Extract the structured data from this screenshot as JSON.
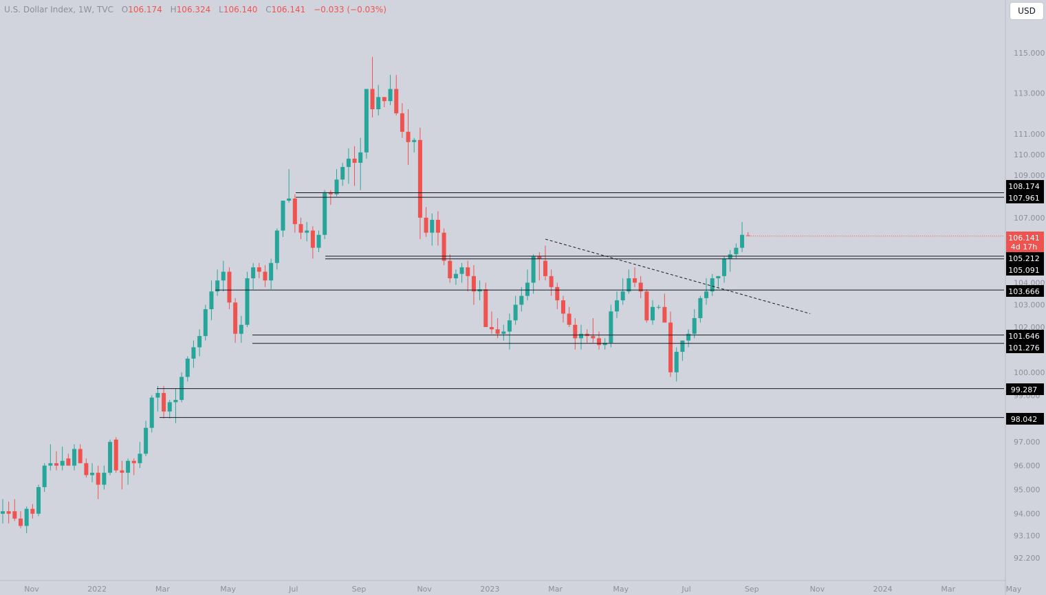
{
  "header": {
    "symbol": "U.S. Dollar Index, 1W, TVC",
    "open_label": "O",
    "open": "106.174",
    "high_label": "H",
    "high": "106.324",
    "low_label": "L",
    "low": "106.140",
    "close_label": "C",
    "close": "106.141",
    "change": "−0.033 (−0.03%)"
  },
  "currency_button": "USD",
  "colors": {
    "up": "#26a69a",
    "down": "#ef5350",
    "background": "#d1d4dc",
    "axis_text": "#8a8f99"
  },
  "chart_data": {
    "type": "candlestick",
    "x_tick_labels": [
      "Nov",
      "2022",
      "Mar",
      "May",
      "Jul",
      "Sep",
      "Nov",
      "2023",
      "Mar",
      "May",
      "Jul",
      "Sep",
      "Nov",
      "2024",
      "Mar",
      "May"
    ],
    "y_tick_labels": [
      "115.000",
      "113.000",
      "111.000",
      "110.000",
      "109.000",
      "107.000",
      "104.000",
      "103.000",
      "102.000",
      "100.000",
      "99.000",
      "97.000",
      "96.000",
      "95.000",
      "94.000",
      "93.100",
      "92.200"
    ],
    "ylim": [
      91.0,
      116.0
    ],
    "y_scale": "log",
    "candles": [
      [
        94.0,
        94.6,
        93.6,
        94.1
      ],
      [
        94.1,
        94.5,
        93.6,
        94.0
      ],
      [
        94.1,
        94.6,
        93.7,
        93.8
      ],
      [
        93.8,
        94.1,
        93.4,
        93.5
      ],
      [
        93.5,
        94.3,
        93.2,
        94.2
      ],
      [
        94.2,
        94.4,
        93.8,
        94.0
      ],
      [
        94.0,
        95.2,
        93.9,
        95.1
      ],
      [
        95.1,
        96.1,
        94.9,
        96.0
      ],
      [
        96.0,
        96.9,
        95.8,
        96.1
      ],
      [
        96.1,
        96.6,
        95.8,
        96.0
      ],
      [
        96.0,
        96.8,
        95.8,
        96.2
      ],
      [
        96.3,
        96.5,
        96.0,
        96.0
      ],
      [
        96.0,
        96.9,
        95.8,
        96.7
      ],
      [
        96.7,
        96.9,
        96.1,
        96.1
      ],
      [
        96.1,
        96.3,
        95.5,
        95.6
      ],
      [
        95.6,
        96.1,
        95.3,
        95.7
      ],
      [
        95.7,
        96.0,
        94.6,
        95.2
      ],
      [
        95.2,
        96.0,
        95.0,
        95.7
      ],
      [
        95.7,
        97.1,
        95.6,
        97.0
      ],
      [
        97.1,
        97.2,
        95.7,
        95.8
      ],
      [
        95.8,
        96.2,
        95.0,
        95.7
      ],
      [
        95.7,
        96.3,
        95.2,
        96.2
      ],
      [
        96.2,
        96.3,
        95.6,
        96.1
      ],
      [
        96.1,
        97.0,
        95.9,
        96.5
      ],
      [
        96.5,
        97.9,
        96.4,
        97.6
      ],
      [
        97.6,
        99.0,
        97.4,
        98.9
      ],
      [
        98.9,
        99.4,
        98.3,
        99.1
      ],
      [
        99.1,
        99.4,
        98.0,
        98.3
      ],
      [
        98.3,
        98.8,
        98.0,
        98.7
      ],
      [
        98.7,
        99.3,
        97.8,
        98.8
      ],
      [
        98.8,
        100.0,
        98.7,
        99.8
      ],
      [
        99.8,
        100.7,
        99.6,
        100.6
      ],
      [
        100.6,
        101.4,
        100.2,
        101.1
      ],
      [
        101.1,
        101.9,
        100.7,
        101.6
      ],
      [
        101.6,
        103.0,
        101.4,
        102.8
      ],
      [
        102.8,
        104.1,
        102.3,
        103.6
      ],
      [
        103.6,
        104.6,
        103.4,
        104.1
      ],
      [
        104.1,
        105.0,
        103.6,
        104.5
      ],
      [
        104.5,
        104.7,
        102.8,
        103.1
      ],
      [
        103.1,
        103.3,
        101.3,
        101.7
      ],
      [
        101.7,
        102.5,
        101.3,
        102.1
      ],
      [
        102.1,
        104.5,
        102.0,
        104.2
      ],
      [
        104.2,
        104.9,
        103.7,
        104.7
      ],
      [
        104.7,
        104.9,
        104.2,
        104.5
      ],
      [
        104.5,
        104.8,
        103.8,
        104.1
      ],
      [
        104.1,
        105.1,
        103.7,
        104.9
      ],
      [
        104.9,
        106.5,
        104.6,
        106.4
      ],
      [
        106.4,
        107.7,
        106.1,
        107.8
      ],
      [
        107.8,
        109.3,
        107.7,
        107.9
      ],
      [
        107.9,
        108.1,
        106.3,
        106.7
      ],
      [
        106.7,
        107.0,
        106.0,
        106.3
      ],
      [
        106.3,
        106.8,
        105.9,
        106.4
      ],
      [
        106.4,
        106.6,
        105.1,
        105.6
      ],
      [
        105.6,
        106.4,
        105.4,
        106.2
      ],
      [
        106.2,
        108.3,
        106.0,
        108.2
      ],
      [
        108.2,
        108.3,
        107.6,
        108.1
      ],
      [
        108.1,
        109.3,
        108.0,
        108.8
      ],
      [
        108.8,
        109.6,
        108.5,
        109.4
      ],
      [
        109.4,
        110.3,
        108.6,
        109.8
      ],
      [
        109.8,
        110.4,
        108.5,
        109.6
      ],
      [
        109.6,
        110.8,
        108.3,
        110.1
      ],
      [
        110.1,
        113.0,
        109.8,
        113.2
      ],
      [
        113.2,
        114.8,
        111.8,
        112.2
      ],
      [
        112.2,
        113.4,
        111.9,
        112.8
      ],
      [
        112.8,
        112.8,
        112.3,
        112.6
      ],
      [
        112.6,
        113.9,
        112.4,
        113.2
      ],
      [
        113.2,
        113.9,
        111.9,
        112.0
      ],
      [
        112.0,
        112.5,
        110.8,
        111.1
      ],
      [
        111.1,
        112.2,
        109.5,
        110.6
      ],
      [
        110.6,
        110.8,
        110.1,
        110.7
      ],
      [
        110.7,
        111.3,
        106.0,
        107.0
      ],
      [
        107.0,
        107.5,
        106.1,
        106.3
      ],
      [
        106.3,
        107.2,
        105.7,
        106.9
      ],
      [
        106.9,
        107.3,
        105.7,
        106.3
      ],
      [
        106.3,
        106.5,
        104.8,
        105.0
      ],
      [
        105.0,
        105.3,
        104.0,
        104.2
      ],
      [
        104.2,
        104.6,
        103.9,
        104.4
      ],
      [
        104.4,
        104.9,
        104.0,
        104.7
      ],
      [
        104.7,
        105.0,
        103.6,
        104.3
      ],
      [
        104.3,
        104.8,
        103.0,
        103.6
      ],
      [
        103.6,
        104.1,
        103.2,
        103.7
      ],
      [
        103.7,
        104.0,
        102.0,
        102.0
      ],
      [
        102.0,
        102.7,
        101.7,
        101.9
      ],
      [
        101.9,
        102.4,
        101.5,
        101.7
      ],
      [
        101.7,
        102.1,
        101.4,
        101.8
      ],
      [
        101.8,
        102.6,
        101.0,
        102.3
      ],
      [
        102.3,
        103.4,
        102.1,
        103.0
      ],
      [
        103.0,
        103.8,
        102.7,
        103.4
      ],
      [
        103.4,
        104.6,
        103.2,
        104.0
      ],
      [
        104.0,
        105.3,
        103.5,
        105.2
      ],
      [
        105.2,
        105.4,
        104.1,
        105.1
      ],
      [
        105.0,
        105.7,
        104.1,
        104.3
      ],
      [
        104.3,
        104.6,
        103.4,
        103.8
      ],
      [
        103.8,
        104.0,
        102.8,
        103.2
      ],
      [
        103.2,
        103.4,
        102.2,
        102.6
      ],
      [
        102.6,
        102.9,
        102.0,
        102.1
      ],
      [
        102.1,
        102.4,
        101.0,
        101.5
      ],
      [
        101.5,
        102.1,
        101.0,
        101.7
      ],
      [
        101.7,
        101.9,
        101.3,
        101.6
      ],
      [
        101.6,
        102.4,
        101.3,
        101.5
      ],
      [
        101.5,
        101.8,
        101.0,
        101.2
      ],
      [
        101.2,
        101.5,
        101.0,
        101.3
      ],
      [
        101.3,
        103.0,
        101.1,
        102.7
      ],
      [
        102.7,
        103.6,
        102.4,
        103.2
      ],
      [
        103.2,
        104.2,
        103.0,
        103.6
      ],
      [
        103.6,
        104.6,
        103.5,
        104.2
      ],
      [
        104.2,
        104.7,
        103.8,
        104.0
      ],
      [
        104.0,
        104.3,
        103.3,
        103.6
      ],
      [
        103.6,
        103.7,
        102.2,
        102.3
      ],
      [
        102.3,
        103.2,
        102.1,
        102.9
      ],
      [
        102.9,
        103.0,
        102.8,
        102.9
      ],
      [
        102.9,
        103.5,
        102.2,
        102.2
      ],
      [
        102.2,
        102.7,
        99.8,
        100.0
      ],
      [
        100.0,
        101.1,
        99.6,
        100.9
      ],
      [
        100.9,
        101.3,
        100.5,
        101.4
      ],
      [
        101.4,
        101.9,
        101.1,
        101.7
      ],
      [
        101.7,
        102.8,
        101.5,
        102.4
      ],
      [
        102.4,
        103.4,
        102.2,
        103.3
      ],
      [
        103.3,
        104.2,
        103.0,
        103.6
      ],
      [
        103.6,
        104.4,
        103.4,
        104.2
      ],
      [
        104.2,
        104.3,
        103.8,
        104.3
      ],
      [
        104.3,
        105.2,
        104.0,
        105.1
      ],
      [
        105.1,
        105.5,
        104.5,
        105.3
      ],
      [
        105.3,
        105.8,
        105.1,
        105.6
      ],
      [
        105.6,
        106.8,
        105.4,
        106.2
      ],
      [
        106.174,
        106.324,
        106.14,
        106.141
      ]
    ],
    "horizontal_levels": [
      "108.174",
      "107.961",
      "105.212",
      "105.091",
      "103.666",
      "101.646",
      "101.276",
      "99.287",
      "98.042"
    ],
    "trendline": {
      "from": 106.0,
      "to": 102.6,
      "style": "dashed"
    },
    "last_price": "106.141",
    "countdown": "4d 17h"
  }
}
